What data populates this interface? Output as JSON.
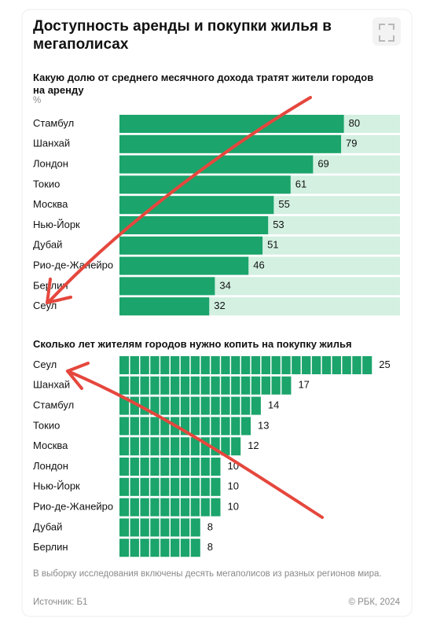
{
  "header": {
    "title": "Доступность аренды и покупки жилья в мегаполисах"
  },
  "chart_data": [
    {
      "type": "bar",
      "title": "Какую долю от среднего месячного дохода тратят жители городов на аренду",
      "unit": "%",
      "categories": [
        "Стамбул",
        "Шанхай",
        "Лондон",
        "Токио",
        "Москва",
        "Нью-Йорк",
        "Дубай",
        "Рио-де-Жанейро",
        "Берлин",
        "Сеул"
      ],
      "values": [
        80,
        79,
        69,
        61,
        55,
        53,
        51,
        46,
        34,
        32
      ],
      "xlim": [
        0,
        100
      ],
      "color": "#1ba46b",
      "background_color": "#d3f0e1"
    },
    {
      "type": "blocks",
      "title": "Сколько лет жителям городов нужно копить на покупку жилья",
      "categories": [
        "Сеул",
        "Шанхай",
        "Стамбул",
        "Токио",
        "Москва",
        "Лондон",
        "Нью-Йорк",
        "Рио-де-Жанейро",
        "Дубай",
        "Берлин"
      ],
      "values": [
        25,
        17,
        14,
        13,
        12,
        10,
        10,
        10,
        8,
        8
      ],
      "color": "#1ba46b"
    }
  ],
  "footer": {
    "note": "В выборку исследования включены десять мегаполисов из разных регионов мира.",
    "source": "Источник: Б1",
    "copyright": "© РБК, 2024"
  }
}
